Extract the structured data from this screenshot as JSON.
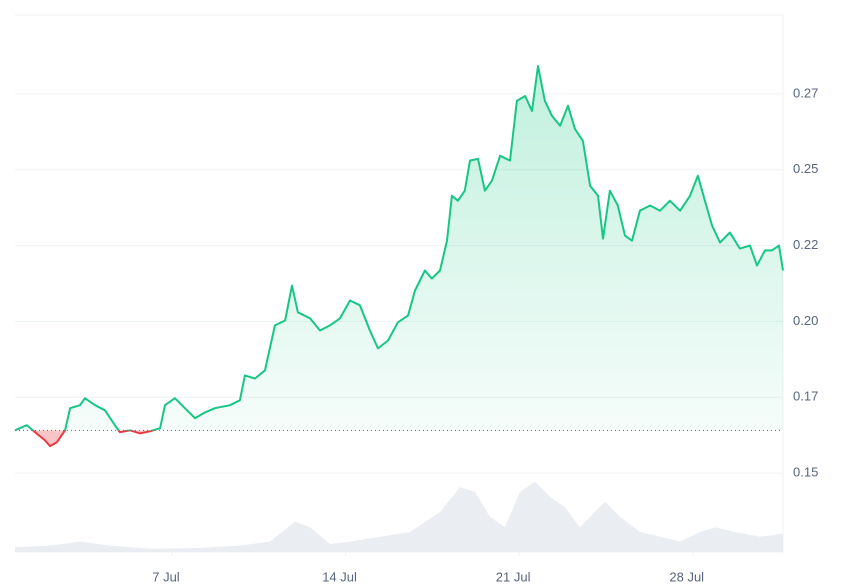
{
  "chart_data": {
    "type": "line",
    "xlim": [
      0.67,
      31.64
    ],
    "xticks": [
      {
        "value": 7,
        "label": "7 Jul"
      },
      {
        "value": 14,
        "label": "14 Jul"
      },
      {
        "value": 21,
        "label": "21 Jul"
      },
      {
        "value": 28,
        "label": "28 Jul"
      }
    ],
    "ylim": [
      0.124,
      0.301
    ],
    "yticks": [
      {
        "value": 0.275,
        "label": "0.27"
      },
      0.25,
      {
        "value": 0.225,
        "label": "0.22"
      },
      {
        "value": 0.2,
        "label": "0.20"
      },
      {
        "value": 0.175,
        "label": "0.17"
      },
      0.15
    ],
    "grid": true,
    "baseline_line": true,
    "x": [
      0.67,
      1.15,
      1.48,
      1.88,
      2.08,
      2.36,
      2.69,
      2.89,
      3.29,
      3.49,
      3.9,
      4.3,
      4.7,
      4.9,
      5.31,
      5.71,
      6.11,
      6.52,
      6.72,
      7.12,
      7.52,
      7.93,
      8.33,
      8.73,
      9.34,
      9.74,
      9.94,
      10.35,
      10.75,
      11.15,
      11.56,
      11.84,
      12.08,
      12.57,
      12.97,
      13.37,
      13.77,
      14.18,
      14.58,
      14.98,
      15.31,
      15.71,
      16.11,
      16.52,
      16.8,
      17.2,
      17.48,
      17.81,
      18.09,
      18.29,
      18.53,
      18.81,
      19.02,
      19.34,
      19.62,
      19.9,
      20.23,
      20.63,
      20.91,
      21.24,
      21.52,
      21.76,
      22.04,
      22.32,
      22.65,
      22.97,
      23.25,
      23.57,
      23.86,
      24.18,
      24.38,
      24.66,
      24.98,
      25.27,
      25.55,
      25.87,
      26.28,
      26.68,
      27.08,
      27.49,
      27.89,
      28.21,
      28.49,
      28.78,
      29.1,
      29.5,
      29.9,
      30.31,
      30.59,
      30.91,
      31.19,
      31.48,
      31.64
    ],
    "series": [
      {
        "color": "#16c784",
        "color_below": "#ea3943",
        "values": [
          0.1641,
          0.1658,
          0.1635,
          0.1608,
          0.1589,
          0.1602,
          0.1641,
          0.1714,
          0.1724,
          0.1747,
          0.1724,
          0.1707,
          0.1658,
          0.1635,
          0.1641,
          0.1631,
          0.1638,
          0.1648,
          0.1724,
          0.1747,
          0.1714,
          0.1681,
          0.17,
          0.1714,
          0.1724,
          0.174,
          0.1822,
          0.1812,
          0.1839,
          0.1987,
          0.2003,
          0.2118,
          0.203,
          0.201,
          0.197,
          0.1987,
          0.201,
          0.2069,
          0.2053,
          0.197,
          0.1911,
          0.1937,
          0.1997,
          0.202,
          0.2102,
          0.2168,
          0.2141,
          0.2168,
          0.2266,
          0.2414,
          0.2398,
          0.2431,
          0.253,
          0.2536,
          0.2431,
          0.2464,
          0.2546,
          0.253,
          0.2727,
          0.2743,
          0.2694,
          0.2842,
          0.2727,
          0.2678,
          0.2645,
          0.2711,
          0.2635,
          0.2595,
          0.2447,
          0.2414,
          0.2273,
          0.2431,
          0.2382,
          0.2283,
          0.2266,
          0.2365,
          0.2382,
          0.2365,
          0.2398,
          0.2365,
          0.2414,
          0.248,
          0.2398,
          0.2316,
          0.226,
          0.2293,
          0.224,
          0.225,
          0.2184,
          0.2234,
          0.2234,
          0.225,
          0.2168
        ]
      }
    ],
    "volume": {
      "color": "#e6eaee",
      "ylim": [
        0,
        100
      ],
      "x": [
        0.67,
        2.08,
        3.29,
        4.5,
        6.11,
        8.13,
        9.74,
        10.95,
        11.96,
        12.57,
        13.37,
        14.18,
        15.39,
        16.6,
        17.81,
        18.61,
        19.22,
        19.82,
        20.43,
        21.03,
        21.64,
        22.24,
        22.85,
        23.45,
        24.06,
        24.46,
        25.07,
        25.87,
        26.68,
        27.49,
        28.29,
        28.9,
        29.7,
        30.71,
        31.64
      ],
      "values": [
        6,
        8,
        13,
        8,
        4,
        5,
        8,
        13,
        38,
        31,
        10,
        13,
        19,
        25,
        50,
        81,
        75,
        44,
        31,
        75,
        88,
        69,
        56,
        31,
        50,
        63,
        44,
        25,
        19,
        13,
        25,
        31,
        25,
        19,
        23
      ]
    }
  }
}
